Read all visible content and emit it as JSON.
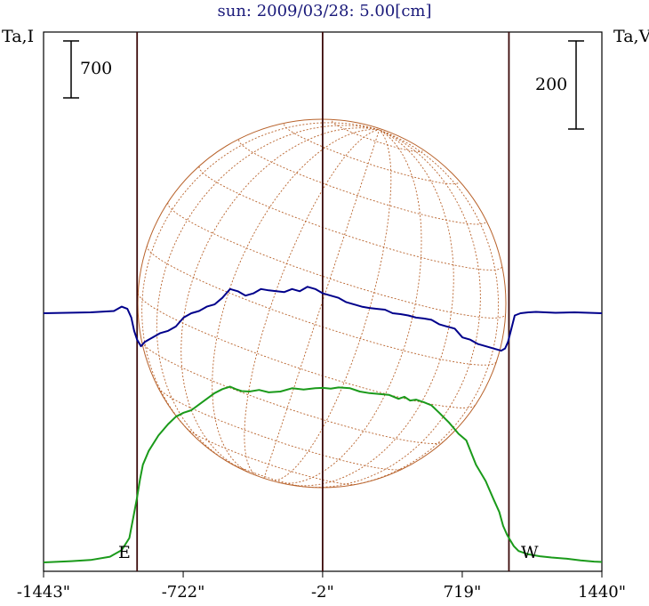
{
  "title": "sun: 2009/03/28: 5.00[cm]",
  "left_axis_label": "Ta,I",
  "right_axis_label": "Ta,V",
  "left_scale_label": "700",
  "right_scale_label": "200",
  "east_label": "E",
  "west_label": "W",
  "colors": {
    "stokes_i": "#1a9a1a",
    "stokes_v": "#00008b",
    "grid": "#b8622b",
    "frame": "#000000",
    "limb_lines": "#3b0a0a",
    "title": "#1a1a7a"
  },
  "chart_data": {
    "type": "line",
    "title": "sun: 2009/03/28: 5.00[cm]",
    "xlabel": "",
    "x_ticks": [
      "-1443\"",
      "-722\"",
      "-2\"",
      "719\"",
      "1440\""
    ],
    "xlim": [
      -1443,
      1440
    ],
    "vertical_lines_arcsec": [
      -960,
      -2,
      960
    ],
    "scale_bars": [
      {
        "axis": "left",
        "label": "700"
      },
      {
        "axis": "right",
        "label": "200"
      }
    ],
    "series": [
      {
        "axis": "left",
        "x": [
          -1443,
          -1300,
          -1200,
          -1100,
          -1040,
          -1000,
          -980,
          -960,
          -945,
          -930,
          -900,
          -850,
          -800,
          -760,
          -720,
          -680,
          -640,
          -600,
          -560,
          -520,
          -480,
          -450,
          -420,
          -380,
          -330,
          -280,
          -220,
          -160,
          -100,
          -40,
          0,
          40,
          80,
          140,
          190,
          240,
          290,
          340,
          390,
          420,
          450,
          480,
          520,
          560,
          600,
          650,
          700,
          740,
          790,
          840,
          880,
          910,
          930,
          950,
          965,
          985,
          1010,
          1060,
          1120,
          1180,
          1260,
          1330,
          1400,
          1440
        ],
        "y": [
          0,
          15,
          30,
          70,
          150,
          300,
          550,
          800,
          1020,
          1200,
          1370,
          1560,
          1700,
          1790,
          1840,
          1870,
          1940,
          2010,
          2080,
          2130,
          2160,
          2130,
          2105,
          2100,
          2120,
          2090,
          2100,
          2140,
          2125,
          2140,
          2145,
          2135,
          2150,
          2140,
          2100,
          2080,
          2070,
          2060,
          2010,
          2035,
          1990,
          2000,
          1970,
          1930,
          1840,
          1720,
          1580,
          1500,
          1200,
          1000,
          780,
          620,
          450,
          340,
          280,
          200,
          140,
          100,
          75,
          60,
          45,
          25,
          10,
          5
        ]
      },
      {
        "axis": "right",
        "x": [
          -1443,
          -1200,
          -1080,
          -1040,
          -1010,
          -990,
          -975,
          -960,
          -940,
          -920,
          -880,
          -840,
          -800,
          -760,
          -720,
          -680,
          -640,
          -600,
          -560,
          -520,
          -480,
          -440,
          -400,
          -360,
          -320,
          -280,
          -240,
          -200,
          -160,
          -120,
          -80,
          -40,
          0,
          40,
          80,
          120,
          160,
          200,
          240,
          280,
          320,
          360,
          400,
          440,
          480,
          520,
          560,
          600,
          640,
          680,
          720,
          760,
          800,
          840,
          880,
          920,
          940,
          955,
          970,
          990,
          1020,
          1060,
          1100,
          1200,
          1300,
          1440
        ],
        "y": [
          0,
          2,
          5,
          15,
          10,
          -10,
          -40,
          -60,
          -75,
          -65,
          -55,
          -45,
          -40,
          -30,
          -10,
          0,
          5,
          15,
          20,
          35,
          55,
          50,
          40,
          45,
          55,
          52,
          50,
          48,
          55,
          50,
          60,
          55,
          45,
          40,
          35,
          25,
          20,
          15,
          12,
          10,
          8,
          0,
          -2,
          -5,
          -10,
          -12,
          -15,
          -25,
          -30,
          -35,
          -55,
          -60,
          -70,
          -75,
          -80,
          -85,
          -80,
          -65,
          -40,
          -5,
          0,
          2,
          3,
          1,
          2,
          0
        ]
      }
    ]
  }
}
